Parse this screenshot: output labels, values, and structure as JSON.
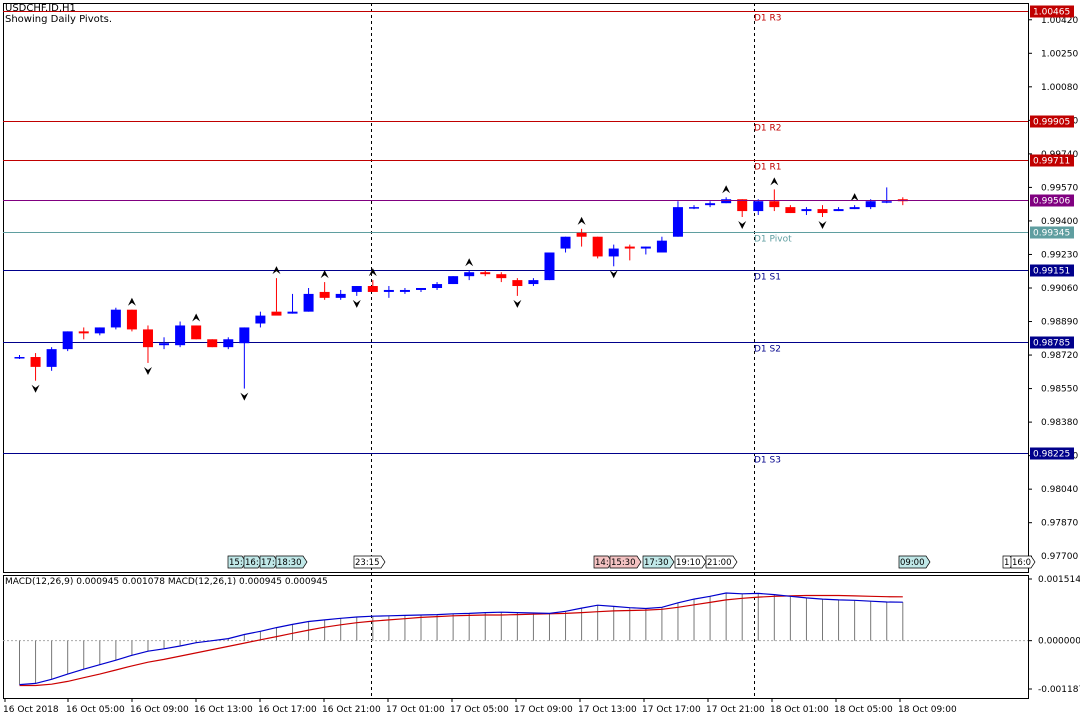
{
  "window": {
    "symbol_title": "USDCHF.ID,H1",
    "indicator_note": "Showing Daily Pivots."
  },
  "colors": {
    "bull": "#0000ff",
    "bear": "#ff0000",
    "resistance_line": "#c00000",
    "support_line": "#00008b",
    "pivot_line": "#5f9ea0",
    "macd_main": "#0000cd",
    "macd_signal": "#cc0000",
    "bid_tag": "#800080"
  },
  "chart_data": [
    {
      "type": "candlestick",
      "title": "USDCHF.ID,H1",
      "ylim": [
        0.9762,
        1.00505
      ],
      "y_ticks": [
        "1.00420",
        "1.00250",
        "1.00080",
        "0.99910",
        "0.99740",
        "0.99570",
        "0.99400",
        "0.99230",
        "0.99060",
        "0.98890",
        "0.98720",
        "0.98550",
        "0.98380",
        "0.98210",
        "0.98040",
        "0.97870",
        "0.97700"
      ],
      "x_labels": [
        "16 Oct 2018",
        "16 Oct 05:00",
        "16 Oct 09:00",
        "16 Oct 13:00",
        "16 Oct 17:00",
        "16 Oct 21:00",
        "17 Oct 01:00",
        "17 Oct 05:00",
        "17 Oct 09:00",
        "17 Oct 13:00",
        "17 Oct 17:00",
        "17 Oct 21:00",
        "18 Oct 01:00",
        "18 Oct 05:00",
        "18 Oct 09:00"
      ],
      "current_price": 0.99506,
      "pivot_levels": [
        {
          "name": "D1 R3",
          "value": 1.00465,
          "label": "1.00465",
          "kind": "resistance"
        },
        {
          "name": "D1 R2",
          "value": 0.99905,
          "label": "0.99905",
          "kind": "resistance"
        },
        {
          "name": "D1 R1",
          "value": 0.99711,
          "label": "0.99711",
          "kind": "resistance"
        },
        {
          "name": "D1 Pivot",
          "value": 0.99345,
          "label": "0.99345",
          "kind": "pivot"
        },
        {
          "name": "D1 S1",
          "value": 0.99151,
          "label": "0.99151",
          "kind": "support"
        },
        {
          "name": "D1 S2",
          "value": 0.98785,
          "label": "0.98785",
          "kind": "support"
        },
        {
          "name": "D1 S3",
          "value": 0.98225,
          "label": "0.98225",
          "kind": "support"
        }
      ],
      "candles": [
        [
          0.9871,
          0.9872,
          0.987,
          0.9871
        ],
        [
          0.9871,
          0.9873,
          0.9859,
          0.9866
        ],
        [
          0.9866,
          0.9876,
          0.9864,
          0.9875
        ],
        [
          0.9875,
          0.9884,
          0.9874,
          0.9884
        ],
        [
          0.9884,
          0.9886,
          0.988,
          0.9883
        ],
        [
          0.9883,
          0.9886,
          0.9882,
          0.9886
        ],
        [
          0.9886,
          0.9896,
          0.9885,
          0.9895
        ],
        [
          0.9895,
          0.9895,
          0.9884,
          0.9885
        ],
        [
          0.9885,
          0.9887,
          0.9868,
          0.9876
        ],
        [
          0.9877,
          0.9881,
          0.9875,
          0.9878
        ],
        [
          0.9877,
          0.9889,
          0.9876,
          0.9887
        ],
        [
          0.9887,
          0.9887,
          0.988,
          0.988
        ],
        [
          0.988,
          0.988,
          0.9876,
          0.9876
        ],
        [
          0.9876,
          0.9881,
          0.9875,
          0.988
        ],
        [
          0.9878,
          0.9886,
          0.9855,
          0.9886
        ],
        [
          0.9888,
          0.9894,
          0.9886,
          0.9892
        ],
        [
          0.9894,
          0.9911,
          0.9894,
          0.9892
        ],
        [
          0.9893,
          0.9903,
          0.9893,
          0.9894
        ],
        [
          0.9894,
          0.9906,
          0.9894,
          0.9903
        ],
        [
          0.9904,
          0.9909,
          0.99,
          0.9901
        ],
        [
          0.9901,
          0.9905,
          0.99,
          0.9903
        ],
        [
          0.9904,
          0.9907,
          0.9902,
          0.9907
        ],
        [
          0.9907,
          0.991,
          0.9904,
          0.9904
        ],
        [
          0.9904,
          0.9907,
          0.9901,
          0.9905
        ],
        [
          0.9904,
          0.9906,
          0.9903,
          0.9905
        ],
        [
          0.9905,
          0.9906,
          0.9904,
          0.9906
        ],
        [
          0.9906,
          0.9909,
          0.9905,
          0.9908
        ],
        [
          0.9908,
          0.9912,
          0.9908,
          0.9912
        ],
        [
          0.9912,
          0.9915,
          0.991,
          0.9914
        ],
        [
          0.9914,
          0.9915,
          0.9912,
          0.9913
        ],
        [
          0.9913,
          0.9914,
          0.9909,
          0.9911
        ],
        [
          0.991,
          0.9911,
          0.9902,
          0.9907
        ],
        [
          0.9908,
          0.9911,
          0.9907,
          0.991
        ],
        [
          0.991,
          0.9924,
          0.991,
          0.9924
        ],
        [
          0.9926,
          0.9932,
          0.9924,
          0.9932
        ],
        [
          0.9934,
          0.9936,
          0.9927,
          0.9932
        ],
        [
          0.9932,
          0.9932,
          0.9921,
          0.9922
        ],
        [
          0.9922,
          0.9928,
          0.9917,
          0.9926
        ],
        [
          0.9927,
          0.9928,
          0.992,
          0.9926
        ],
        [
          0.9926,
          0.9927,
          0.9923,
          0.9927
        ],
        [
          0.9924,
          0.9932,
          0.9924,
          0.993
        ],
        [
          0.9932,
          0.995,
          0.9932,
          0.9947
        ],
        [
          0.9947,
          0.9948,
          0.9946,
          0.9947
        ],
        [
          0.9948,
          0.995,
          0.9947,
          0.9949
        ],
        [
          0.9949,
          0.9952,
          0.9949,
          0.9951
        ],
        [
          0.9951,
          0.9951,
          0.9942,
          0.9945
        ],
        [
          0.9945,
          0.9951,
          0.9943,
          0.995
        ],
        [
          0.995,
          0.9956,
          0.9945,
          0.9947
        ],
        [
          0.9947,
          0.9948,
          0.9944,
          0.9944
        ],
        [
          0.9945,
          0.9947,
          0.9943,
          0.9946
        ],
        [
          0.9946,
          0.9948,
          0.9942,
          0.9944
        ],
        [
          0.9945,
          0.9947,
          0.9945,
          0.9946
        ],
        [
          0.9946,
          0.9948,
          0.9946,
          0.9947
        ],
        [
          0.9947,
          0.9951,
          0.9946,
          0.995
        ],
        [
          0.995,
          0.9957,
          0.9949,
          0.995
        ],
        [
          0.9951,
          0.9952,
          0.9948,
          0.995
        ]
      ],
      "fractals_up_at": [
        7,
        11,
        16,
        19,
        22,
        28,
        35,
        44,
        47,
        52
      ],
      "fractals_down_at": [
        1,
        8,
        14,
        21,
        31,
        37,
        45,
        50
      ],
      "session_tags": [
        {
          "text": "15:",
          "style": "teal"
        },
        {
          "text": "16:",
          "style": "teal"
        },
        {
          "text": "17:",
          "style": "teal"
        },
        {
          "text": "18:30",
          "style": "teal"
        },
        {
          "text": "23:15",
          "style": "plain"
        },
        {
          "text": "14:",
          "style": "pink"
        },
        {
          "text": "15:30",
          "style": "pink"
        },
        {
          "text": "17:30",
          "style": "teal"
        },
        {
          "text": "19:10",
          "style": "plain"
        },
        {
          "text": "21:00",
          "style": "plain"
        },
        {
          "text": "09:00",
          "style": "teal"
        },
        {
          "text": "1",
          "style": "plain"
        },
        {
          "text": "16:0",
          "style": "plain"
        }
      ]
    },
    {
      "type": "line",
      "title": "MACD(12,26,9) 0.000945 0.001078 MACD(12,26,1) 0.000945 0.000945",
      "ylim": [
        -0.001187,
        0.001514
      ],
      "y_ticks": [
        "0.001514",
        "0.000000",
        "-0.001187"
      ],
      "series": [
        {
          "name": "MACD(12,26,9)",
          "values": [
            -0.00108,
            -0.00105,
            -0.00095,
            -0.00082,
            -0.0007,
            -0.00059,
            -0.00048,
            -0.00036,
            -0.00026,
            -0.0002,
            -0.00013,
            -5e-05,
            0.0,
            5e-05,
            0.00015,
            0.00023,
            0.00032,
            0.0004,
            0.00047,
            0.00051,
            0.00055,
            0.00058,
            0.0006,
            0.00061,
            0.00062,
            0.00063,
            0.00064,
            0.00066,
            0.00067,
            0.00069,
            0.0007,
            0.00069,
            0.00068,
            0.00067,
            0.00072,
            0.0008,
            0.00087,
            0.00084,
            0.00081,
            0.00079,
            0.00082,
            0.00093,
            0.00102,
            0.00109,
            0.00117,
            0.00115,
            0.00116,
            0.00113,
            0.00109,
            0.00105,
            0.00102,
            0.001,
            0.00099,
            0.00097,
            0.00095,
            0.000945
          ]
        },
        {
          "name": "",
          "values": [
            -0.0011,
            -0.0011,
            -0.00107,
            -0.001,
            -0.00091,
            -0.00082,
            -0.00072,
            -0.00062,
            -0.00053,
            -0.00046,
            -0.00038,
            -0.0003,
            -0.00022,
            -0.00014,
            -6e-05,
            2e-05,
            0.0001,
            0.00018,
            0.00026,
            0.00033,
            0.00039,
            0.00044,
            0.00048,
            0.00051,
            0.00054,
            0.00057,
            0.00059,
            0.00061,
            0.00062,
            0.00063,
            0.00063,
            0.00064,
            0.00065,
            0.00066,
            0.00067,
            0.00069,
            0.00071,
            0.00073,
            0.00074,
            0.00075,
            0.00077,
            0.00082,
            0.00088,
            0.00094,
            0.001,
            0.00104,
            0.00107,
            0.00109,
            0.0011,
            0.00111,
            0.00111,
            0.00111,
            0.0011,
            0.00109,
            0.00108,
            0.001078
          ]
        }
      ]
    }
  ]
}
